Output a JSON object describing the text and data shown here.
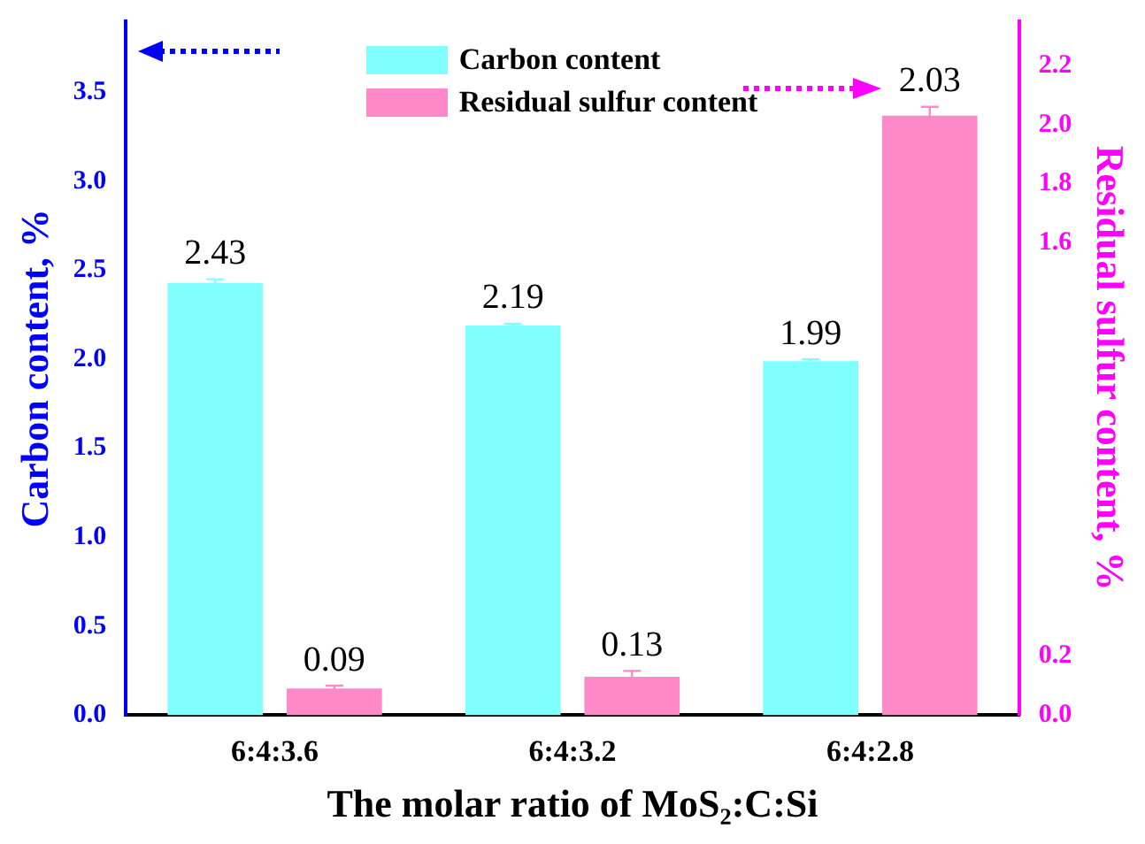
{
  "chart_data": {
    "type": "bar",
    "xlabel": "The molar ratio of MoS₂:C:Si",
    "ylabel": "Carbon content, %",
    "y2label": "Residual sulfur content, %",
    "categories": [
      "6:4:3.6",
      "6:4:3.2",
      "6:4:2.8"
    ],
    "series": [
      {
        "name": "Carbon content",
        "color": "#80ffff",
        "values": [
          2.43,
          2.19,
          1.99
        ],
        "errors": [
          0.02,
          0.01,
          0.01
        ]
      },
      {
        "name": "Residual sulfur content",
        "color": "#ff88c8",
        "values": [
          0.09,
          0.13,
          2.03
        ],
        "errors": [
          0.01,
          0.02,
          0.03
        ],
        "axis": "y2"
      }
    ],
    "ylim": [
      0,
      3.9
    ],
    "yticks": [
      {
        "value": 0,
        "label": "0.0"
      },
      {
        "value": 0.5,
        "label": "0.5"
      },
      {
        "value": 1,
        "label": "1.0"
      },
      {
        "value": 1.5,
        "label": "1.5"
      },
      {
        "value": 2,
        "label": "2.0"
      },
      {
        "value": 2.5,
        "label": "2.5"
      },
      {
        "value": 3,
        "label": "3.0"
      },
      {
        "value": 3.5,
        "label": "3.5"
      }
    ],
    "y2lim": [
      0,
      2.35
    ],
    "y2ticks": [
      {
        "value": 0,
        "label": "0.0"
      },
      {
        "value": 0.2,
        "label": "0.2"
      },
      {
        "value": 1.6,
        "label": "1.6"
      },
      {
        "value": 1.8,
        "label": "1.8"
      },
      {
        "value": 2,
        "label": "2.0"
      },
      {
        "value": 2.2,
        "label": "2.2"
      }
    ],
    "data_labels": true,
    "legend": "top",
    "grid": false
  }
}
